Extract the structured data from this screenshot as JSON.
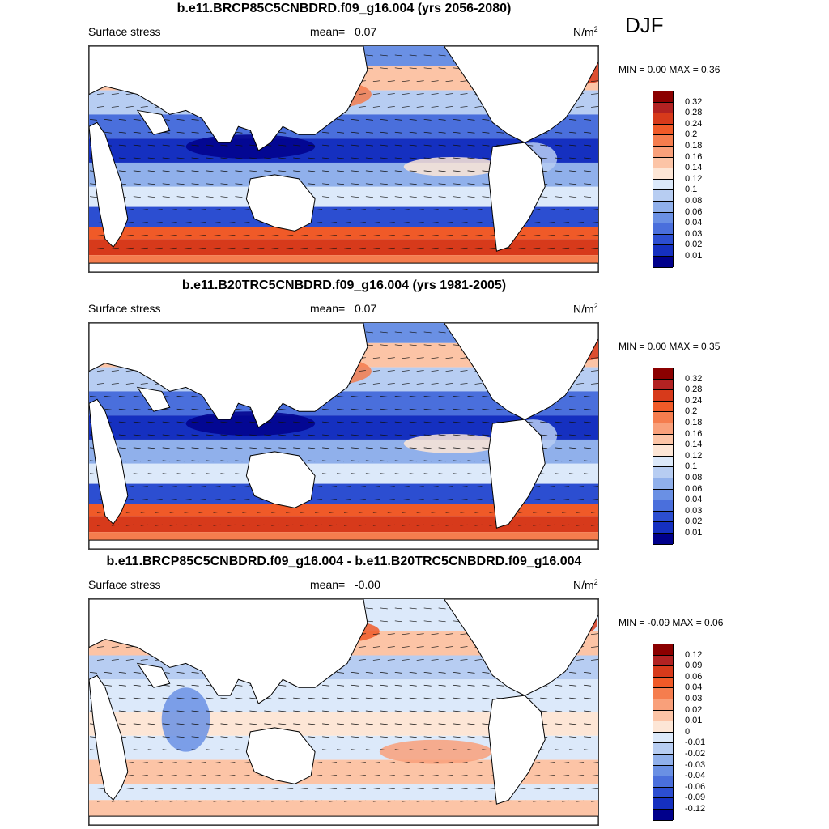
{
  "season": "DJF",
  "units_base": "N/m",
  "units_exp": "2",
  "panels": [
    {
      "title": "b.e11.BRCP85C5CNBDRD.f09_g16.004 (yrs 2056-2080)",
      "field": "Surface stress",
      "mean_label": "mean=",
      "mean": "0.07",
      "minmax": "MIN =   0.00 MAX =   0.36",
      "ticks": [
        "0.32",
        "0.28",
        "0.24",
        "0.2",
        "0.18",
        "0.16",
        "0.14",
        "0.12",
        "0.1",
        "0.08",
        "0.06",
        "0.04",
        "0.03",
        "0.02",
        "0.01"
      ],
      "colors": [
        "#8b0000",
        "#b22222",
        "#d73a1b",
        "#f05a28",
        "#f57d4e",
        "#f9a07a",
        "#fcc4a6",
        "#fde6d6",
        "#dce9fa",
        "#b7cdf2",
        "#90b0eb",
        "#6a90e4",
        "#4a6fdc",
        "#2c4ed1",
        "#1530c0",
        "#00008b"
      ]
    },
    {
      "title": "b.e11.B20TRC5CNBDRD.f09_g16.004 (yrs 1981-2005)",
      "field": "Surface stress",
      "mean_label": "mean=",
      "mean": "0.07",
      "minmax": "MIN =   0.00 MAX =   0.35",
      "ticks": [
        "0.32",
        "0.28",
        "0.24",
        "0.2",
        "0.18",
        "0.16",
        "0.14",
        "0.12",
        "0.1",
        "0.08",
        "0.06",
        "0.04",
        "0.03",
        "0.02",
        "0.01"
      ],
      "colors": [
        "#8b0000",
        "#b22222",
        "#d73a1b",
        "#f05a28",
        "#f57d4e",
        "#f9a07a",
        "#fcc4a6",
        "#fde6d6",
        "#dce9fa",
        "#b7cdf2",
        "#90b0eb",
        "#6a90e4",
        "#4a6fdc",
        "#2c4ed1",
        "#1530c0",
        "#00008b"
      ]
    },
    {
      "title": "b.e11.BRCP85C5CNBDRD.f09_g16.004 - b.e11.B20TRC5CNBDRD.f09_g16.004",
      "field": "Surface stress",
      "mean_label": "mean=",
      "mean": "-0.00",
      "minmax": "MIN =  -0.09 MAX =   0.06",
      "ticks": [
        "0.12",
        "0.09",
        "0.06",
        "0.04",
        "0.03",
        "0.02",
        "0.01",
        "0",
        "-0.01",
        "-0.02",
        "-0.03",
        "-0.04",
        "-0.06",
        "-0.09",
        "-0.12"
      ],
      "colors": [
        "#8b0000",
        "#b22222",
        "#d73a1b",
        "#f05a28",
        "#f57d4e",
        "#f9a07a",
        "#fcc4a6",
        "#fde6d6",
        "#dce9fa",
        "#b7cdf2",
        "#90b0eb",
        "#6a90e4",
        "#4a6fdc",
        "#2c4ed1",
        "#1530c0",
        "#00008b"
      ]
    }
  ]
}
